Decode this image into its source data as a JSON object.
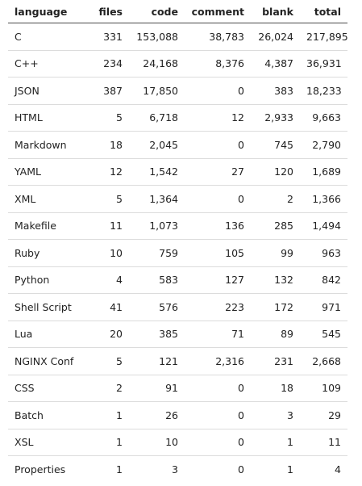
{
  "table": {
    "headers": [
      "language",
      "files",
      "code",
      "comment",
      "blank",
      "total"
    ],
    "rows": [
      [
        "C",
        "331",
        "153,088",
        "38,783",
        "26,024",
        "217,895"
      ],
      [
        "C++",
        "234",
        "24,168",
        "8,376",
        "4,387",
        "36,931"
      ],
      [
        "JSON",
        "387",
        "17,850",
        "0",
        "383",
        "18,233"
      ],
      [
        "HTML",
        "5",
        "6,718",
        "12",
        "2,933",
        "9,663"
      ],
      [
        "Markdown",
        "18",
        "2,045",
        "0",
        "745",
        "2,790"
      ],
      [
        "YAML",
        "12",
        "1,542",
        "27",
        "120",
        "1,689"
      ],
      [
        "XML",
        "5",
        "1,364",
        "0",
        "2",
        "1,366"
      ],
      [
        "Makefile",
        "11",
        "1,073",
        "136",
        "285",
        "1,494"
      ],
      [
        "Ruby",
        "10",
        "759",
        "105",
        "99",
        "963"
      ],
      [
        "Python",
        "4",
        "583",
        "127",
        "132",
        "842"
      ],
      [
        "Shell Script",
        "41",
        "576",
        "223",
        "172",
        "971"
      ],
      [
        "Lua",
        "20",
        "385",
        "71",
        "89",
        "545"
      ],
      [
        "NGINX Conf",
        "5",
        "121",
        "2,316",
        "231",
        "2,668"
      ],
      [
        "CSS",
        "2",
        "91",
        "0",
        "18",
        "109"
      ],
      [
        "Batch",
        "1",
        "26",
        "0",
        "3",
        "29"
      ],
      [
        "XSL",
        "1",
        "10",
        "0",
        "1",
        "11"
      ],
      [
        "Properties",
        "1",
        "3",
        "0",
        "1",
        "4"
      ]
    ]
  }
}
